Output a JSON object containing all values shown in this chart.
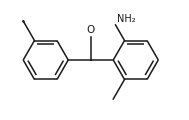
{
  "background_color": "#ffffff",
  "line_color": "#1a1a1a",
  "line_width": 1.1,
  "text_color": "#1a1a1a",
  "figsize": [
    1.89,
    1.2
  ],
  "dpi": 100,
  "o_label": "O",
  "nh2_label": "NH₂",
  "font_size_label": 7.5,
  "font_size_nh2": 7.0
}
